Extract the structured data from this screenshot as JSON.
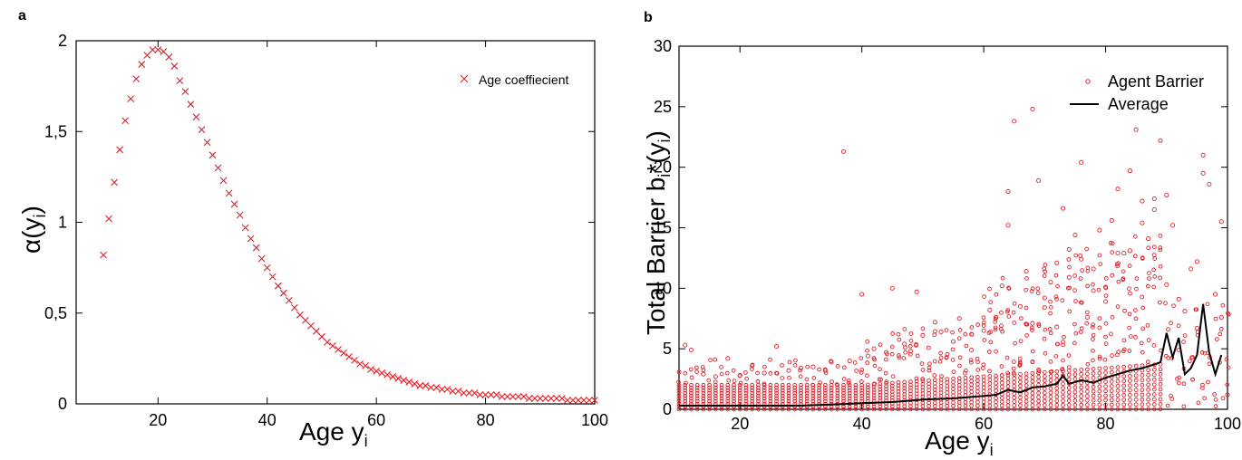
{
  "panels": {
    "a": {
      "letter": "a"
    },
    "b": {
      "letter": "b"
    }
  },
  "colors": {
    "marker": "#e0202a",
    "line": "#000000",
    "axis": "#000000"
  },
  "chart_data": [
    {
      "type": "scatter",
      "panel": "a",
      "xlabel_main": "Age y",
      "xlabel_sub": "i",
      "ylabel_prefix": "α(y",
      "ylabel_sub": "i",
      "ylabel_suffix": ")",
      "xlim": [
        5,
        100
      ],
      "ylim": [
        0,
        2
      ],
      "xticks": [
        20,
        40,
        60,
        80,
        100
      ],
      "xtick_labels": [
        "20",
        "40",
        "60",
        "80",
        "100"
      ],
      "yticks": [
        0,
        0.5,
        1,
        1.5,
        2
      ],
      "ytick_labels": [
        "0",
        "0,5",
        "1",
        "1,5",
        "2"
      ],
      "legend": "top-right",
      "series": [
        {
          "name": "Age coeffiecient",
          "marker": "x",
          "x": [
            10,
            11,
            12,
            13,
            14,
            15,
            16,
            17,
            18,
            19,
            20,
            21,
            22,
            23,
            24,
            25,
            26,
            27,
            28,
            29,
            30,
            31,
            32,
            33,
            34,
            35,
            36,
            37,
            38,
            39,
            40,
            41,
            42,
            43,
            44,
            45,
            46,
            47,
            48,
            49,
            50,
            51,
            52,
            53,
            54,
            55,
            56,
            57,
            58,
            59,
            60,
            61,
            62,
            63,
            64,
            65,
            66,
            67,
            68,
            69,
            70,
            71,
            72,
            73,
            74,
            75,
            76,
            77,
            78,
            79,
            80,
            81,
            82,
            83,
            84,
            85,
            86,
            87,
            88,
            89,
            90,
            91,
            92,
            93,
            94,
            95,
            96,
            97,
            98,
            99,
            100
          ],
          "y": [
            0.82,
            1.02,
            1.22,
            1.4,
            1.56,
            1.68,
            1.79,
            1.87,
            1.92,
            1.95,
            1.95,
            1.94,
            1.91,
            1.86,
            1.78,
            1.72,
            1.65,
            1.58,
            1.51,
            1.44,
            1.37,
            1.3,
            1.23,
            1.16,
            1.1,
            1.04,
            0.97,
            0.91,
            0.86,
            0.8,
            0.75,
            0.7,
            0.65,
            0.61,
            0.57,
            0.53,
            0.49,
            0.46,
            0.43,
            0.4,
            0.37,
            0.34,
            0.32,
            0.3,
            0.28,
            0.26,
            0.24,
            0.22,
            0.21,
            0.19,
            0.18,
            0.17,
            0.16,
            0.15,
            0.14,
            0.13,
            0.12,
            0.11,
            0.1,
            0.1,
            0.09,
            0.09,
            0.08,
            0.08,
            0.07,
            0.07,
            0.06,
            0.06,
            0.06,
            0.05,
            0.05,
            0.05,
            0.05,
            0.04,
            0.04,
            0.04,
            0.04,
            0.04,
            0.03,
            0.03,
            0.03,
            0.03,
            0.03,
            0.03,
            0.03,
            0.02,
            0.02,
            0.02,
            0.02,
            0.02,
            0.02
          ]
        }
      ]
    },
    {
      "type": "scatter",
      "panel": "b",
      "xlabel_main": "Age y",
      "xlabel_sub": "i",
      "ylabel_main": "Total Barrier b",
      "ylabel_sub1": "i",
      "ylabel_star": "*(y",
      "ylabel_sub2": "i",
      "ylabel_suffix": ")",
      "xlim": [
        10,
        100
      ],
      "ylim": [
        0,
        30
      ],
      "xticks": [
        20,
        40,
        60,
        80,
        100
      ],
      "xtick_labels": [
        "20",
        "40",
        "60",
        "80",
        "100"
      ],
      "yticks": [
        0,
        5,
        10,
        15,
        20,
        25,
        30
      ],
      "ytick_labels": [
        "0",
        "5",
        "10",
        "15",
        "20",
        "25",
        "30"
      ],
      "legend": "top-right",
      "series": [
        {
          "name": "Agent Barrier",
          "marker": "circle-open",
          "points": [
            [
              11,
              5.3
            ],
            [
              12,
              4.9
            ],
            [
              18,
              4.2
            ],
            [
              22,
              3.6
            ],
            [
              26,
              5.2
            ],
            [
              30,
              3.4
            ],
            [
              34,
              3.2
            ],
            [
              37,
              21.3
            ],
            [
              40,
              9.5
            ],
            [
              42,
              5.0
            ],
            [
              45,
              10.0
            ],
            [
              47,
              5.4
            ],
            [
              49,
              9.7
            ],
            [
              52,
              7.2
            ],
            [
              55,
              5.6
            ],
            [
              58,
              4.9
            ],
            [
              60,
              6.5
            ],
            [
              62,
              7.6
            ],
            [
              64,
              18.0
            ],
            [
              64,
              15.2
            ],
            [
              65,
              23.8
            ],
            [
              67,
              11.4
            ],
            [
              68,
              24.8
            ],
            [
              69,
              18.9
            ],
            [
              70,
              8.4
            ],
            [
              71,
              10.5
            ],
            [
              72,
              12.1
            ],
            [
              73,
              16.6
            ],
            [
              74,
              13.2
            ],
            [
              75,
              14.4
            ],
            [
              76,
              20.4
            ],
            [
              77,
              7.6
            ],
            [
              78,
              11.6
            ],
            [
              79,
              14.8
            ],
            [
              80,
              10.1
            ],
            [
              81,
              15.6
            ],
            [
              82,
              18.2
            ],
            [
              83,
              12.9
            ],
            [
              84,
              19.7
            ],
            [
              85,
              23.1
            ],
            [
              86,
              15.4
            ],
            [
              87,
              14.1
            ],
            [
              88,
              17.4
            ],
            [
              89,
              22.2
            ],
            [
              90,
              10.3
            ],
            [
              91,
              15.2
            ],
            [
              92,
              9.1
            ],
            [
              93,
              8.1
            ],
            [
              94,
              11.6
            ],
            [
              95,
              6.7
            ],
            [
              96,
              21.0
            ],
            [
              97,
              18.6
            ],
            [
              98,
              9.5
            ],
            [
              99,
              15.5
            ],
            [
              99,
              7.6
            ],
            [
              100,
              1.2
            ],
            [
              96,
              19.5
            ],
            [
              95,
              12.2
            ],
            [
              90,
              17.7
            ],
            [
              88,
              16.5
            ],
            [
              86,
              17.2
            ],
            [
              84,
              13.1
            ],
            [
              82,
              12.9
            ],
            [
              80,
              8.9
            ],
            [
              78,
              9.8
            ],
            [
              76,
              12.4
            ],
            [
              74,
              10.9
            ],
            [
              72,
              6.8
            ],
            [
              70,
              9.2
            ],
            [
              68,
              7.1
            ],
            [
              66,
              8.5
            ],
            [
              63,
              10.2
            ],
            [
              61,
              8.2
            ],
            [
              58,
              6.2
            ],
            [
              56,
              7.5
            ],
            [
              53,
              6.4
            ],
            [
              50,
              6.1
            ],
            [
              48,
              4.8
            ],
            [
              44,
              4.7
            ],
            [
              41,
              4.4
            ],
            [
              38,
              4.0
            ],
            [
              35,
              3.9
            ],
            [
              32,
              3.5
            ],
            [
              28,
              3.2
            ],
            [
              24,
              3.0
            ],
            [
              20,
              2.8
            ],
            [
              16,
              2.7
            ],
            [
              14,
              2.9
            ]
          ],
          "dense_band": {
            "x_from": 10,
            "x_to": 89,
            "y_base": 0,
            "y_top": 2.0,
            "note": ""
          }
        },
        {
          "name": "Average",
          "marker": "line",
          "x": [
            10,
            15,
            20,
            25,
            30,
            35,
            40,
            45,
            50,
            55,
            60,
            62,
            64,
            66,
            68,
            70,
            72,
            73,
            74,
            76,
            78,
            80,
            82,
            84,
            86,
            88,
            89,
            90,
            91,
            92,
            93,
            94,
            95,
            96,
            97,
            98,
            99
          ],
          "y": [
            0.3,
            0.3,
            0.3,
            0.3,
            0.3,
            0.4,
            0.5,
            0.6,
            0.8,
            0.9,
            1.1,
            1.2,
            1.6,
            1.4,
            1.8,
            1.9,
            2.1,
            2.8,
            2.1,
            2.4,
            2.2,
            2.6,
            2.9,
            3.2,
            3.4,
            3.7,
            3.9,
            6.3,
            4.3,
            5.9,
            2.9,
            3.4,
            4.5,
            8.7,
            4.7,
            2.9,
            4.5
          ]
        }
      ]
    }
  ]
}
